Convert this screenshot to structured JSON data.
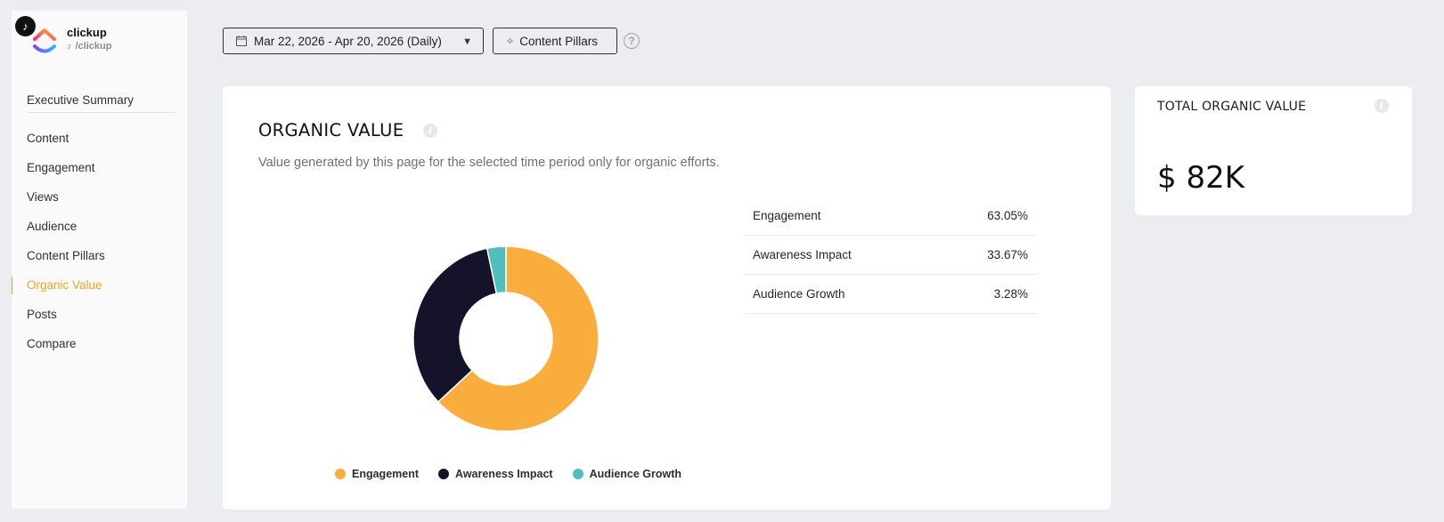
{
  "account": {
    "name": "clickup",
    "handle": "/clickup",
    "platform_icon": "tiktok-icon"
  },
  "sidebar": {
    "items": [
      {
        "label": "Executive Summary",
        "active": false
      },
      {
        "label": "Content",
        "active": false
      },
      {
        "label": "Engagement",
        "active": false
      },
      {
        "label": "Views",
        "active": false
      },
      {
        "label": "Audience",
        "active": false
      },
      {
        "label": "Content Pillars",
        "active": false
      },
      {
        "label": "Organic Value",
        "active": true
      },
      {
        "label": "Posts",
        "active": false
      },
      {
        "label": "Compare",
        "active": false
      }
    ]
  },
  "toolbar": {
    "date_range": "Mar 22, 2026 - Apr 20, 2026 (Daily)",
    "content_pillars_label": "Content Pillars",
    "help_icon": "question-circle-icon"
  },
  "organic_value": {
    "title": "ORGANIC VALUE",
    "subtitle": "Value generated by this page for the selected time period only for organic efforts.",
    "breakdown": [
      {
        "label": "Engagement",
        "value": "63.05%"
      },
      {
        "label": "Awareness Impact",
        "value": "33.67%"
      },
      {
        "label": "Audience Growth",
        "value": "3.28%"
      }
    ]
  },
  "chart_data": {
    "type": "pie",
    "donut": true,
    "categories": [
      "Engagement",
      "Awareness Impact",
      "Audience Growth"
    ],
    "values": [
      63.05,
      33.67,
      3.28
    ],
    "colors": [
      "#f8ad3c",
      "#141329",
      "#52bfbf"
    ],
    "legend": "bottom"
  },
  "total_organic_value": {
    "label": "TOTAL ORGANIC VALUE",
    "value": "$ 82K"
  }
}
